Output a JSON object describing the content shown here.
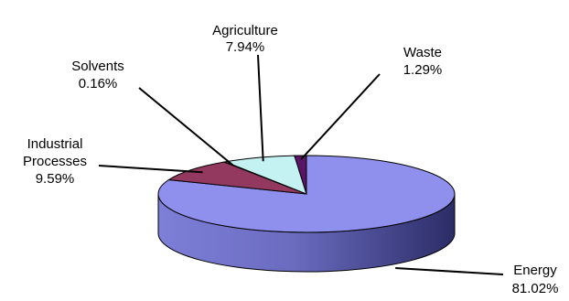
{
  "chart_data": {
    "type": "pie",
    "categories": [
      "Energy",
      "Industrial Processes",
      "Solvents",
      "Agriculture",
      "Waste"
    ],
    "values": [
      81.02,
      9.59,
      0.16,
      7.94,
      1.29
    ],
    "labels": {
      "energy": {
        "name": "Energy",
        "pct": "81.02%"
      },
      "industrial": {
        "name_line1": "Industrial",
        "name_line2": "Processes",
        "pct": "9.59%"
      },
      "solvents": {
        "name": "Solvents",
        "pct": "0.16%"
      },
      "agriculture": {
        "name": "Agriculture",
        "pct": "7.94%"
      },
      "waste": {
        "name": "Waste",
        "pct": "1.29%"
      }
    },
    "colors": {
      "energy": "#8f90ee",
      "industrial": "#93395f",
      "solvents": "#f4f4c4",
      "agriculture": "#c4f2f2",
      "waste": "#5a1466"
    },
    "style": "3d-tilted",
    "legend": "none"
  }
}
